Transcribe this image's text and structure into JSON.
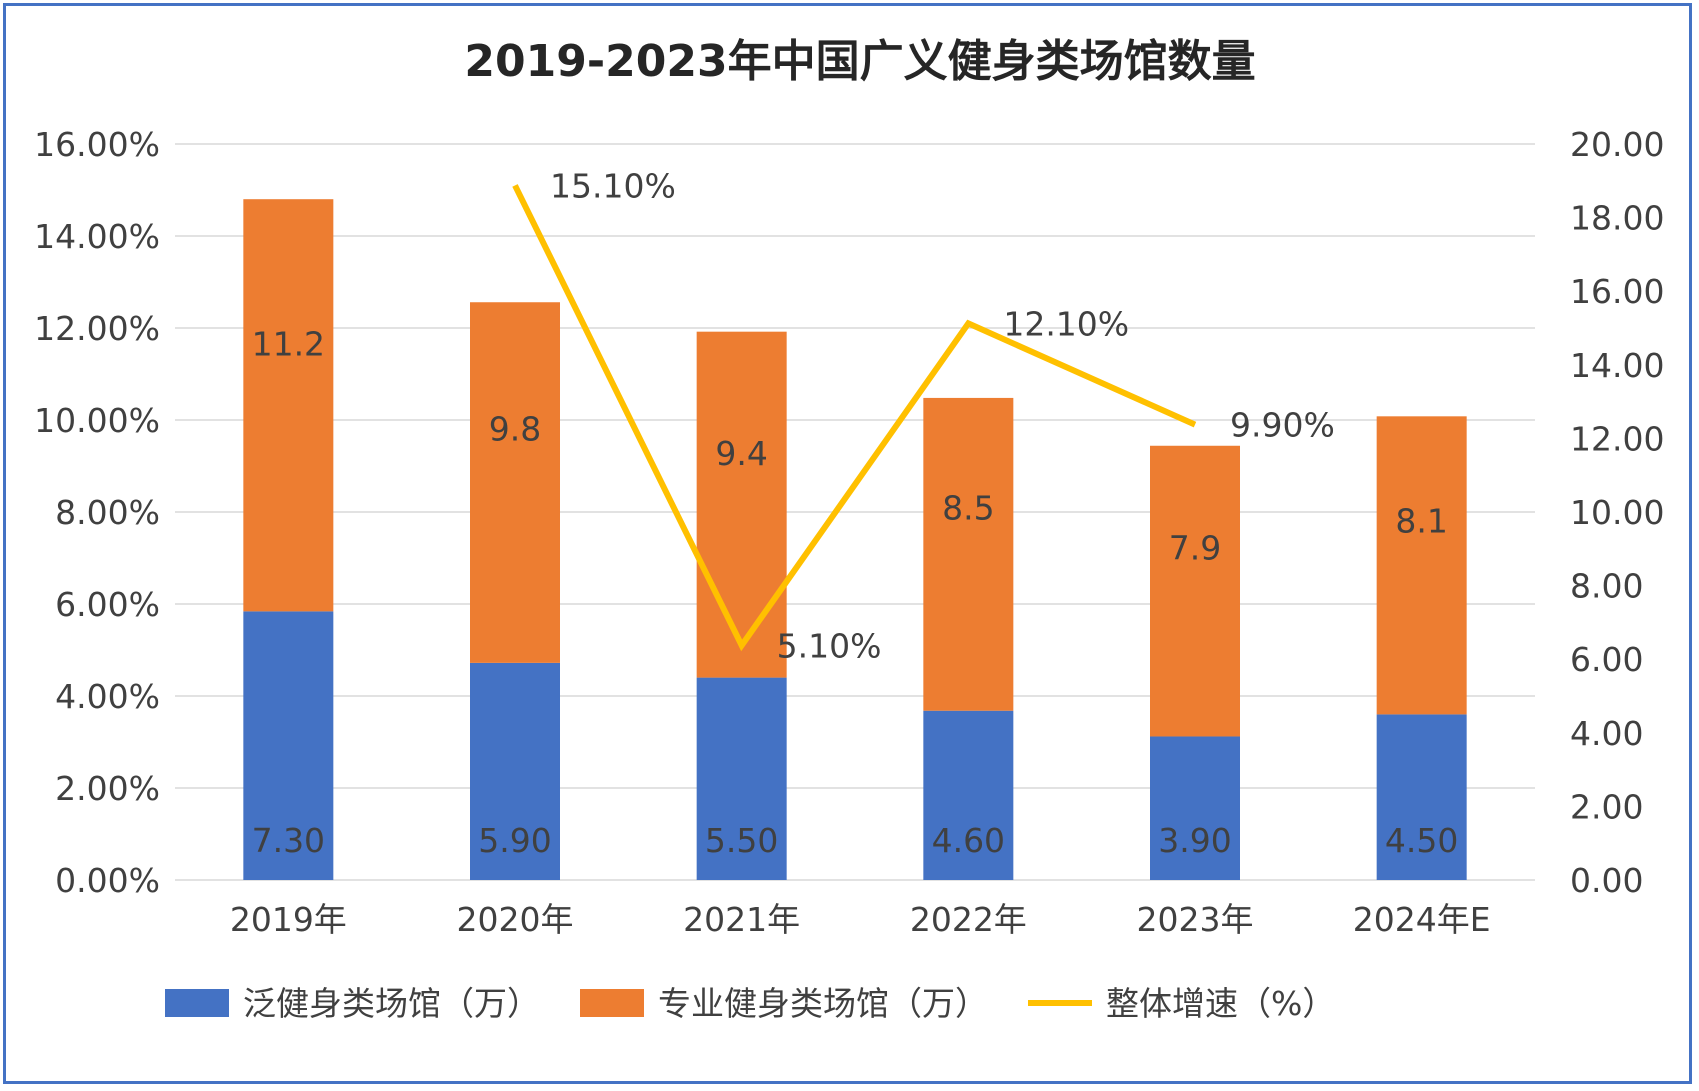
{
  "chart_data": {
    "type": "bar",
    "stacked": true,
    "title": "2019-2023年中国广义健身类场馆数量",
    "categories": [
      "2019年",
      "2020年",
      "2021年",
      "2022年",
      "2023年",
      "2024年E"
    ],
    "series": [
      {
        "name": "泛健身类场馆（万）",
        "kind": "bar",
        "axis": "right",
        "color": "#4472C4",
        "values": [
          7.3,
          5.9,
          5.5,
          4.6,
          3.9,
          4.5
        ],
        "labels": [
          "7.30",
          "5.90",
          "5.50",
          "4.60",
          "3.90",
          "4.50"
        ]
      },
      {
        "name": "专业健身类场馆（万）",
        "kind": "bar",
        "axis": "right",
        "color": "#ED7D31",
        "values": [
          11.2,
          9.8,
          9.4,
          8.5,
          7.9,
          8.1
        ],
        "labels": [
          "11.2",
          "9.8",
          "9.4",
          "8.5",
          "7.9",
          "8.1"
        ]
      },
      {
        "name": "整体增速（%）",
        "kind": "line",
        "axis": "left",
        "color": "#FFC000",
        "values": [
          null,
          15.1,
          5.1,
          12.1,
          9.9,
          null
        ],
        "labels": [
          null,
          "15.10%",
          "5.10%",
          "12.10%",
          "9.90%",
          null
        ]
      }
    ],
    "left_axis": {
      "ylim": [
        0,
        16
      ],
      "ticks": [
        "0.00%",
        "2.00%",
        "4.00%",
        "6.00%",
        "8.00%",
        "10.00%",
        "12.00%",
        "14.00%",
        "16.00%"
      ]
    },
    "right_axis": {
      "ylim": [
        0,
        20
      ],
      "ticks": [
        "0.00",
        "2.00",
        "4.00",
        "6.00",
        "8.00",
        "10.00",
        "12.00",
        "14.00",
        "16.00",
        "18.00",
        "20.00"
      ]
    },
    "grid": true,
    "legend": "bottom"
  }
}
